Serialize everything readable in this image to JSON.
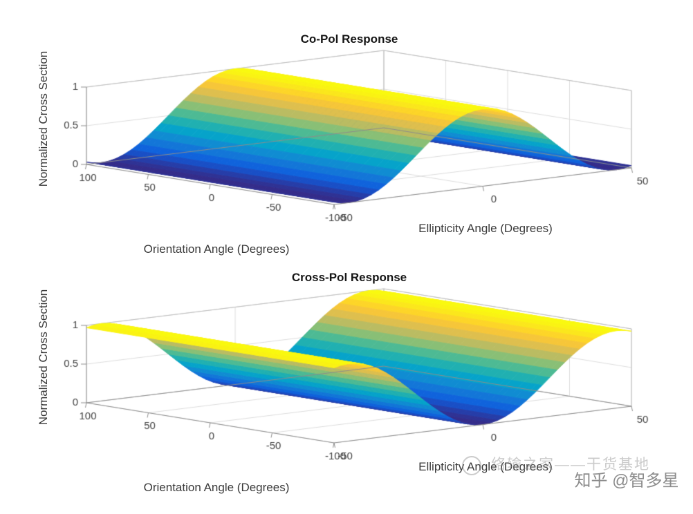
{
  "page": {
    "background": "#ffffff"
  },
  "watermark": {
    "zhihu_label": "知乎 @智多星",
    "faint_label": "络输之家——干货基地",
    "color": "#8c8c8c"
  },
  "chart_data": [
    {
      "type": "surface",
      "title": "Co-Pol Response",
      "xlabel": "Ellipticity Angle (Degrees)",
      "ylabel": "Orientation Angle (Degrees)",
      "zlabel": "Normalized Cross Section",
      "x_ticks": [
        -50,
        0,
        50
      ],
      "y_ticks": [
        100,
        50,
        0,
        -50,
        -100
      ],
      "z_ticks": [
        0,
        0.5,
        1
      ],
      "x_range": [
        -50,
        50
      ],
      "y_range": [
        -100,
        100
      ],
      "z_range": [
        0,
        1
      ],
      "grid": true,
      "colormap": "parula",
      "z_expression": "cos^2(2 * ellipticity_angle), independent of orientation angle",
      "independent_of_orientation": true,
      "ellipticity_samples": [
        -50,
        -47.5,
        -45,
        -42.5,
        -40,
        -37.5,
        -35,
        -32.5,
        -30,
        -27.5,
        -25,
        -22.5,
        -20,
        -17.5,
        -15,
        -12.5,
        -10,
        -7.5,
        -5,
        -2.5,
        0,
        2.5,
        5,
        7.5,
        10,
        12.5,
        15,
        17.5,
        20,
        22.5,
        25,
        27.5,
        30,
        32.5,
        35,
        37.5,
        40,
        42.5,
        45,
        47.5,
        50
      ],
      "z_profile": [
        0.0302,
        0.0076,
        0,
        0.0076,
        0.0302,
        0.067,
        0.117,
        0.1786,
        0.25,
        0.329,
        0.4132,
        0.5,
        0.5868,
        0.671,
        0.75,
        0.8214,
        0.883,
        0.933,
        0.9698,
        0.9924,
        1,
        0.9924,
        0.9698,
        0.933,
        0.883,
        0.8214,
        0.75,
        0.671,
        0.5868,
        0.5,
        0.4132,
        0.329,
        0.25,
        0.1786,
        0.117,
        0.067,
        0.0302,
        0.0076,
        0,
        0.0076,
        0.0302
      ]
    },
    {
      "type": "surface",
      "title": "Cross-Pol Response",
      "xlabel": "Ellipticity Angle (Degrees)",
      "ylabel": "Orientation Angle (Degrees)",
      "zlabel": "Normalized Cross Section",
      "x_ticks": [
        -50,
        0,
        50
      ],
      "y_ticks": [
        100,
        50,
        0,
        -50,
        -100
      ],
      "z_ticks": [
        0,
        0.5,
        1
      ],
      "x_range": [
        -50,
        50
      ],
      "y_range": [
        -100,
        100
      ],
      "z_range": [
        0,
        1
      ],
      "grid": true,
      "colormap": "parula",
      "z_expression": "sin^2(2 * ellipticity_angle), independent of orientation angle",
      "independent_of_orientation": true,
      "ellipticity_samples": [
        -50,
        -47.5,
        -45,
        -42.5,
        -40,
        -37.5,
        -35,
        -32.5,
        -30,
        -27.5,
        -25,
        -22.5,
        -20,
        -17.5,
        -15,
        -12.5,
        -10,
        -7.5,
        -5,
        -2.5,
        0,
        2.5,
        5,
        7.5,
        10,
        12.5,
        15,
        17.5,
        20,
        22.5,
        25,
        27.5,
        30,
        32.5,
        35,
        37.5,
        40,
        42.5,
        45,
        47.5,
        50
      ],
      "z_profile": [
        0.9698,
        0.9924,
        1,
        0.9924,
        0.9698,
        0.933,
        0.883,
        0.8214,
        0.75,
        0.671,
        0.5868,
        0.5,
        0.4132,
        0.329,
        0.25,
        0.1786,
        0.117,
        0.067,
        0.0302,
        0.0076,
        0,
        0.0076,
        0.0302,
        0.067,
        0.117,
        0.1786,
        0.25,
        0.329,
        0.4132,
        0.5,
        0.5868,
        0.671,
        0.75,
        0.8214,
        0.883,
        0.933,
        0.9698,
        0.9924,
        1,
        0.9924,
        0.9698
      ]
    }
  ]
}
